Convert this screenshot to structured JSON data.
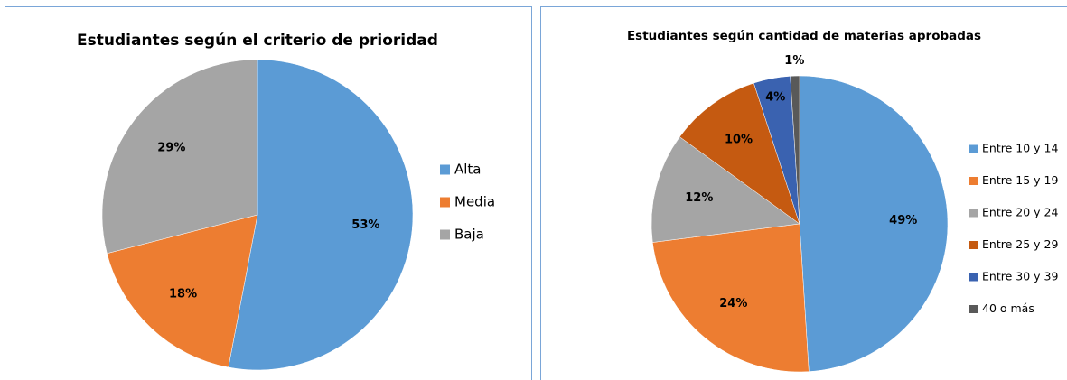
{
  "chart_data": [
    {
      "type": "pie",
      "title": "Estudiantes  según el criterio de prioridad",
      "categories": [
        "Alta",
        "Media",
        "Baja"
      ],
      "values": [
        53,
        18,
        29
      ],
      "value_labels": [
        "53%",
        "18%",
        "29%"
      ],
      "colors": [
        "#5b9bd5",
        "#ed7d31",
        "#a5a5a5"
      ],
      "legend": "right"
    },
    {
      "type": "pie",
      "title": "Estudiantes  según cantidad de materias aprobadas",
      "categories": [
        "Entre 10 y 14",
        "Entre 15 y 19",
        "Entre 20 y 24",
        "Entre 25 y 29",
        "Entre 30 y 39",
        "40 o más"
      ],
      "values": [
        49,
        24,
        12,
        10,
        4,
        1
      ],
      "value_labels": [
        "49%",
        "24%",
        "12%",
        "10%",
        "4%",
        "1%"
      ],
      "colors": [
        "#5b9bd5",
        "#ed7d31",
        "#a5a5a5",
        "#c55a11",
        "#3a62b0",
        "#595959"
      ],
      "legend": "right"
    }
  ]
}
